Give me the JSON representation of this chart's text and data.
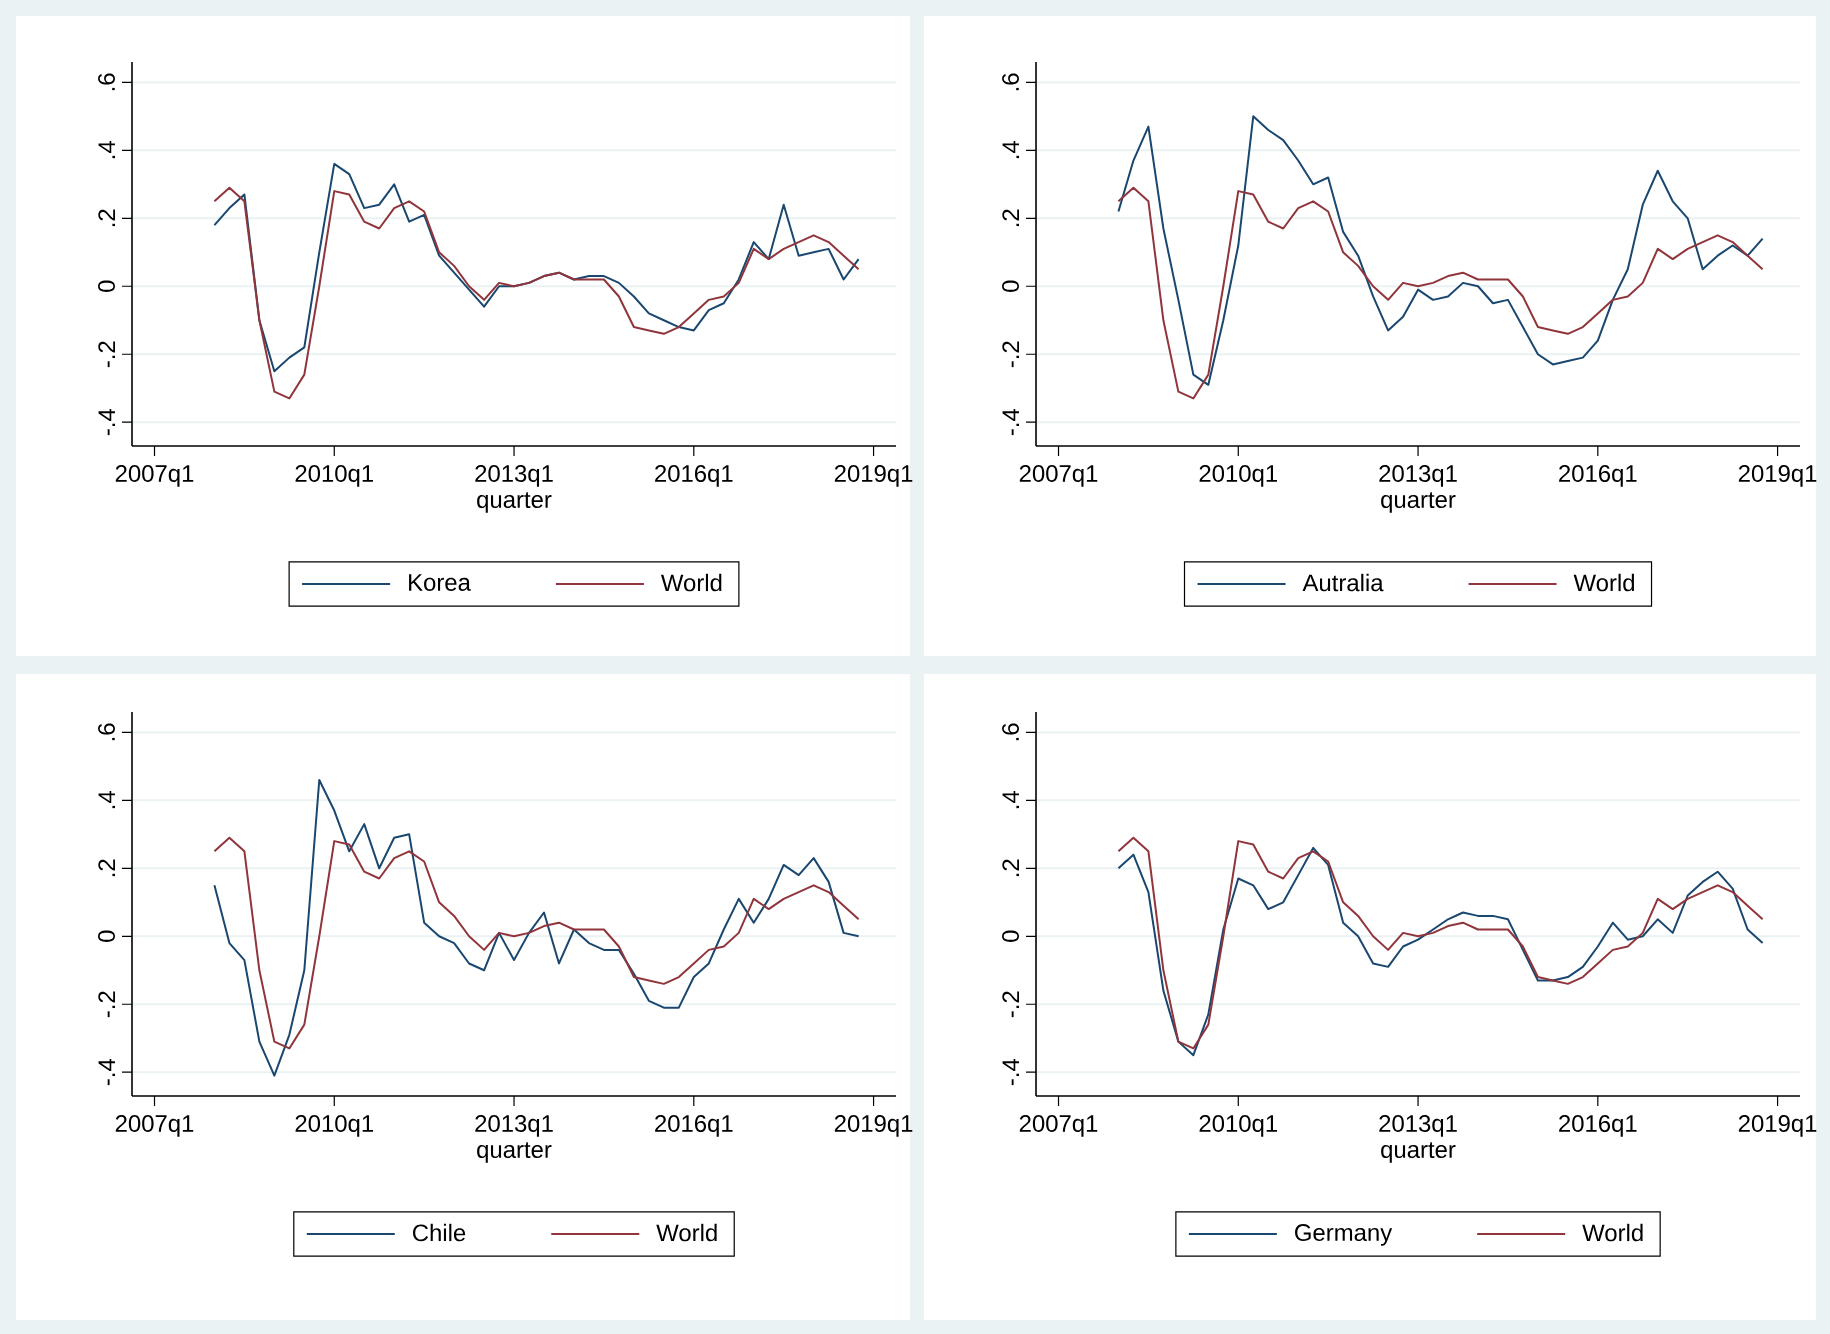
{
  "chart_data": [
    {
      "type": "line",
      "xlabel": "quarter",
      "grid": "y",
      "legend": "bottom",
      "x": [
        "2008-01",
        "2008-04",
        "2008-07",
        "2008-10",
        "2009-01",
        "2009-04",
        "2009-07",
        "2009-10",
        "2010-01",
        "2010-04",
        "2010-07",
        "2010-10",
        "2011-01",
        "2011-04",
        "2011-07",
        "2011-10",
        "2012-01",
        "2012-04",
        "2012-07",
        "2012-10",
        "2013-01",
        "2013-04",
        "2013-07",
        "2013-10",
        "2014-01",
        "2014-04",
        "2014-07",
        "2014-10",
        "2015-01",
        "2015-04",
        "2015-07",
        "2015-10",
        "2016-01",
        "2016-04",
        "2016-07",
        "2016-10",
        "2017-01",
        "2017-04",
        "2017-07",
        "2017-10",
        "2018-01",
        "2018-04",
        "2018-07",
        "2018-10"
      ],
      "xlim": [
        "2006-08-16",
        "2019-05-16"
      ],
      "xticks": [
        {
          "value": "2007-01",
          "label": "2007q1"
        },
        {
          "value": "2010-01",
          "label": "2010q1"
        },
        {
          "value": "2013-01",
          "label": "2013q1"
        },
        {
          "value": "2016-01",
          "label": "2016q1"
        },
        {
          "value": "2019-01",
          "label": "2019q1"
        }
      ],
      "ylim": [
        -0.47,
        0.66
      ],
      "yticks": [
        {
          "value": -0.4,
          "label": "-.4"
        },
        {
          "value": -0.2,
          "label": "-.2"
        },
        0,
        {
          "value": 0.2,
          "label": ".2"
        },
        {
          "value": 0.4,
          "label": ".4"
        },
        {
          "value": 0.6,
          "label": ".6"
        }
      ],
      "series": [
        {
          "name": "Korea",
          "color": "#1a476f",
          "values": [
            0.18,
            0.23,
            0.27,
            -0.1,
            -0.25,
            -0.21,
            -0.18,
            0.1,
            0.36,
            0.33,
            0.23,
            0.24,
            0.3,
            0.19,
            0.21,
            0.09,
            0.04,
            -0.01,
            -0.06,
            0.0,
            0.0,
            0.01,
            0.03,
            0.04,
            0.02,
            0.03,
            0.03,
            0.01,
            -0.03,
            -0.08,
            -0.1,
            -0.12,
            -0.13,
            -0.07,
            -0.05,
            0.02,
            0.13,
            0.08,
            0.24,
            0.09,
            0.1,
            0.11,
            0.02,
            0.08
          ]
        },
        {
          "name": "World",
          "color": "#90353b",
          "values": [
            0.25,
            0.29,
            0.25,
            -0.1,
            -0.31,
            -0.33,
            -0.26,
            0.0,
            0.28,
            0.27,
            0.19,
            0.17,
            0.23,
            0.25,
            0.22,
            0.1,
            0.06,
            0.0,
            -0.04,
            0.01,
            0.0,
            0.01,
            0.03,
            0.04,
            0.02,
            0.02,
            0.02,
            -0.03,
            -0.12,
            -0.13,
            -0.14,
            -0.12,
            -0.08,
            -0.04,
            -0.03,
            0.01,
            0.11,
            0.08,
            0.11,
            0.13,
            0.15,
            0.13,
            0.09,
            0.05
          ]
        }
      ]
    },
    {
      "type": "line",
      "xlabel": "quarter",
      "grid": "y",
      "legend": "bottom",
      "x": [
        "2008-01",
        "2008-04",
        "2008-07",
        "2008-10",
        "2009-01",
        "2009-04",
        "2009-07",
        "2009-10",
        "2010-01",
        "2010-04",
        "2010-07",
        "2010-10",
        "2011-01",
        "2011-04",
        "2011-07",
        "2011-10",
        "2012-01",
        "2012-04",
        "2012-07",
        "2012-10",
        "2013-01",
        "2013-04",
        "2013-07",
        "2013-10",
        "2014-01",
        "2014-04",
        "2014-07",
        "2014-10",
        "2015-01",
        "2015-04",
        "2015-07",
        "2015-10",
        "2016-01",
        "2016-04",
        "2016-07",
        "2016-10",
        "2017-01",
        "2017-04",
        "2017-07",
        "2017-10",
        "2018-01",
        "2018-04",
        "2018-07",
        "2018-10"
      ],
      "xlim": [
        "2006-08-16",
        "2019-05-16"
      ],
      "xticks": [
        {
          "value": "2007-01",
          "label": "2007q1"
        },
        {
          "value": "2010-01",
          "label": "2010q1"
        },
        {
          "value": "2013-01",
          "label": "2013q1"
        },
        {
          "value": "2016-01",
          "label": "2016q1"
        },
        {
          "value": "2019-01",
          "label": "2019q1"
        }
      ],
      "ylim": [
        -0.47,
        0.66
      ],
      "yticks": [
        {
          "value": -0.4,
          "label": "-.4"
        },
        {
          "value": -0.2,
          "label": "-.2"
        },
        0,
        {
          "value": 0.2,
          "label": ".2"
        },
        {
          "value": 0.4,
          "label": ".4"
        },
        {
          "value": 0.6,
          "label": ".6"
        }
      ],
      "series": [
        {
          "name": "Autralia",
          "color": "#1a476f",
          "values": [
            0.22,
            0.37,
            0.47,
            0.17,
            -0.04,
            -0.26,
            -0.29,
            -0.1,
            0.12,
            0.5,
            0.46,
            0.43,
            0.37,
            0.3,
            0.32,
            0.16,
            0.09,
            -0.03,
            -0.13,
            -0.09,
            -0.01,
            -0.04,
            -0.03,
            0.01,
            0.0,
            -0.05,
            -0.04,
            -0.12,
            -0.2,
            -0.23,
            -0.22,
            -0.21,
            -0.16,
            -0.04,
            0.05,
            0.24,
            0.34,
            0.25,
            0.2,
            0.05,
            0.09,
            0.12,
            0.09,
            0.14
          ]
        },
        {
          "name": "World",
          "color": "#90353b",
          "values": [
            0.25,
            0.29,
            0.25,
            -0.1,
            -0.31,
            -0.33,
            -0.26,
            0.0,
            0.28,
            0.27,
            0.19,
            0.17,
            0.23,
            0.25,
            0.22,
            0.1,
            0.06,
            0.0,
            -0.04,
            0.01,
            0.0,
            0.01,
            0.03,
            0.04,
            0.02,
            0.02,
            0.02,
            -0.03,
            -0.12,
            -0.13,
            -0.14,
            -0.12,
            -0.08,
            -0.04,
            -0.03,
            0.01,
            0.11,
            0.08,
            0.11,
            0.13,
            0.15,
            0.13,
            0.09,
            0.05
          ]
        }
      ]
    },
    {
      "type": "line",
      "xlabel": "quarter",
      "grid": "y",
      "legend": "bottom",
      "x": [
        "2008-01",
        "2008-04",
        "2008-07",
        "2008-10",
        "2009-01",
        "2009-04",
        "2009-07",
        "2009-10",
        "2010-01",
        "2010-04",
        "2010-07",
        "2010-10",
        "2011-01",
        "2011-04",
        "2011-07",
        "2011-10",
        "2012-01",
        "2012-04",
        "2012-07",
        "2012-10",
        "2013-01",
        "2013-04",
        "2013-07",
        "2013-10",
        "2014-01",
        "2014-04",
        "2014-07",
        "2014-10",
        "2015-01",
        "2015-04",
        "2015-07",
        "2015-10",
        "2016-01",
        "2016-04",
        "2016-07",
        "2016-10",
        "2017-01",
        "2017-04",
        "2017-07",
        "2017-10",
        "2018-01",
        "2018-04",
        "2018-07",
        "2018-10"
      ],
      "xlim": [
        "2006-08-16",
        "2019-05-16"
      ],
      "xticks": [
        {
          "value": "2007-01",
          "label": "2007q1"
        },
        {
          "value": "2010-01",
          "label": "2010q1"
        },
        {
          "value": "2013-01",
          "label": "2013q1"
        },
        {
          "value": "2016-01",
          "label": "2016q1"
        },
        {
          "value": "2019-01",
          "label": "2019q1"
        }
      ],
      "ylim": [
        -0.47,
        0.66
      ],
      "yticks": [
        {
          "value": -0.4,
          "label": "-.4"
        },
        {
          "value": -0.2,
          "label": "-.2"
        },
        0,
        {
          "value": 0.2,
          "label": ".2"
        },
        {
          "value": 0.4,
          "label": ".4"
        },
        {
          "value": 0.6,
          "label": ".6"
        }
      ],
      "series": [
        {
          "name": "Chile",
          "color": "#1a476f",
          "values": [
            0.15,
            -0.02,
            -0.07,
            -0.31,
            -0.41,
            -0.29,
            -0.1,
            0.46,
            0.37,
            0.25,
            0.33,
            0.2,
            0.29,
            0.3,
            0.04,
            0.0,
            -0.02,
            -0.08,
            -0.1,
            0.01,
            -0.07,
            0.01,
            0.07,
            -0.08,
            0.02,
            -0.02,
            -0.04,
            -0.04,
            -0.11,
            -0.19,
            -0.21,
            -0.21,
            -0.12,
            -0.08,
            0.02,
            0.11,
            0.04,
            0.11,
            0.21,
            0.18,
            0.23,
            0.16,
            0.01,
            0.0
          ]
        },
        {
          "name": "World",
          "color": "#90353b",
          "values": [
            0.25,
            0.29,
            0.25,
            -0.1,
            -0.31,
            -0.33,
            -0.26,
            0.0,
            0.28,
            0.27,
            0.19,
            0.17,
            0.23,
            0.25,
            0.22,
            0.1,
            0.06,
            0.0,
            -0.04,
            0.01,
            0.0,
            0.01,
            0.03,
            0.04,
            0.02,
            0.02,
            0.02,
            -0.03,
            -0.12,
            -0.13,
            -0.14,
            -0.12,
            -0.08,
            -0.04,
            -0.03,
            0.01,
            0.11,
            0.08,
            0.11,
            0.13,
            0.15,
            0.13,
            0.09,
            0.05
          ]
        }
      ]
    },
    {
      "type": "line",
      "xlabel": "quarter",
      "grid": "y",
      "legend": "bottom",
      "x": [
        "2008-01",
        "2008-04",
        "2008-07",
        "2008-10",
        "2009-01",
        "2009-04",
        "2009-07",
        "2009-10",
        "2010-01",
        "2010-04",
        "2010-07",
        "2010-10",
        "2011-01",
        "2011-04",
        "2011-07",
        "2011-10",
        "2012-01",
        "2012-04",
        "2012-07",
        "2012-10",
        "2013-01",
        "2013-04",
        "2013-07",
        "2013-10",
        "2014-01",
        "2014-04",
        "2014-07",
        "2014-10",
        "2015-01",
        "2015-04",
        "2015-07",
        "2015-10",
        "2016-01",
        "2016-04",
        "2016-07",
        "2016-10",
        "2017-01",
        "2017-04",
        "2017-07",
        "2017-10",
        "2018-01",
        "2018-04",
        "2018-07",
        "2018-10"
      ],
      "xlim": [
        "2006-08-16",
        "2019-05-16"
      ],
      "xticks": [
        {
          "value": "2007-01",
          "label": "2007q1"
        },
        {
          "value": "2010-01",
          "label": "2010q1"
        },
        {
          "value": "2013-01",
          "label": "2013q1"
        },
        {
          "value": "2016-01",
          "label": "2016q1"
        },
        {
          "value": "2019-01",
          "label": "2019q1"
        }
      ],
      "ylim": [
        -0.47,
        0.66
      ],
      "yticks": [
        {
          "value": -0.4,
          "label": "-.4"
        },
        {
          "value": -0.2,
          "label": "-.2"
        },
        0,
        {
          "value": 0.2,
          "label": ".2"
        },
        {
          "value": 0.4,
          "label": ".4"
        },
        {
          "value": 0.6,
          "label": ".6"
        }
      ],
      "series": [
        {
          "name": "Germany",
          "color": "#1a476f",
          "values": [
            0.2,
            0.24,
            0.13,
            -0.16,
            -0.31,
            -0.35,
            -0.23,
            0.02,
            0.17,
            0.15,
            0.08,
            0.1,
            0.18,
            0.26,
            0.21,
            0.04,
            0.0,
            -0.08,
            -0.09,
            -0.03,
            -0.01,
            0.02,
            0.05,
            0.07,
            0.06,
            0.06,
            0.05,
            -0.04,
            -0.13,
            -0.13,
            -0.12,
            -0.09,
            -0.03,
            0.04,
            -0.01,
            0.0,
            0.05,
            0.01,
            0.12,
            0.16,
            0.19,
            0.14,
            0.02,
            -0.02
          ]
        },
        {
          "name": "World",
          "color": "#90353b",
          "values": [
            0.25,
            0.29,
            0.25,
            -0.1,
            -0.31,
            -0.33,
            -0.26,
            0.0,
            0.28,
            0.27,
            0.19,
            0.17,
            0.23,
            0.25,
            0.22,
            0.1,
            0.06,
            0.0,
            -0.04,
            0.01,
            0.0,
            0.01,
            0.03,
            0.04,
            0.02,
            0.02,
            0.02,
            -0.03,
            -0.12,
            -0.13,
            -0.14,
            -0.12,
            -0.08,
            -0.04,
            -0.03,
            0.01,
            0.11,
            0.08,
            0.11,
            0.13,
            0.15,
            0.13,
            0.09,
            0.05
          ]
        }
      ]
    }
  ]
}
